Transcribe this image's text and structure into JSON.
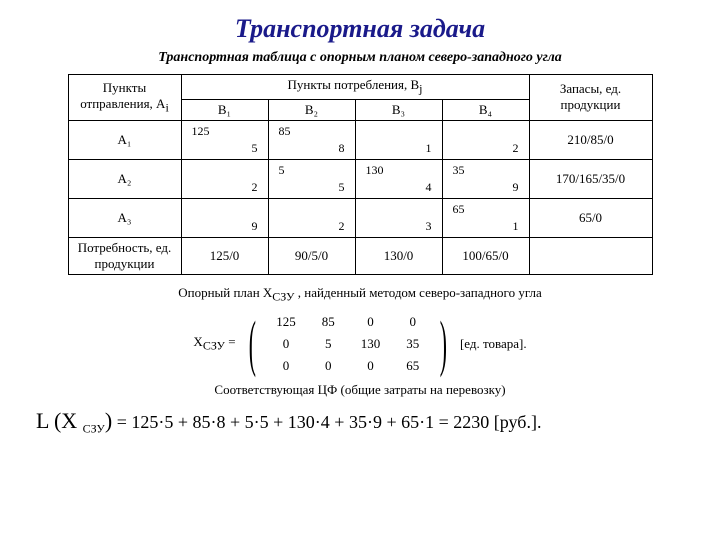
{
  "title": "Транспортная задача",
  "subtitle": "Транспортная таблица с опорным планом северо-западного угла",
  "colors": {
    "title": "#1a1a8a",
    "text": "#000000",
    "border": "#000000",
    "bg": "#ffffff"
  },
  "table": {
    "origin_header": "Пункты отправления, A",
    "origin_sub": "i",
    "cons_header": "Пункты потребления, B",
    "cons_sub": "j",
    "stock_header": "Запасы, ед. продукции",
    "cols": [
      "B₁",
      "B₂",
      "B₃",
      "B₄"
    ],
    "rows": [
      {
        "origin": "A₁",
        "cells": [
          {
            "alloc": "125",
            "cost": "5"
          },
          {
            "alloc": "85",
            "cost": "8"
          },
          {
            "alloc": "",
            "cost": "1"
          },
          {
            "alloc": "",
            "cost": "2"
          }
        ],
        "stock": "210/85/0"
      },
      {
        "origin": "A₂",
        "cells": [
          {
            "alloc": "",
            "cost": "2"
          },
          {
            "alloc": "5",
            "cost": "5"
          },
          {
            "alloc": "130",
            "cost": "4"
          },
          {
            "alloc": "35",
            "cost": "9"
          }
        ],
        "stock": "170/165/35/0"
      },
      {
        "origin": "A₃",
        "cells": [
          {
            "alloc": "",
            "cost": "9"
          },
          {
            "alloc": "",
            "cost": "2"
          },
          {
            "alloc": "",
            "cost": "3"
          },
          {
            "alloc": "65",
            "cost": "1"
          }
        ],
        "stock": "65/0"
      }
    ],
    "demand_label": "Потребность, ед. продукции",
    "demand": [
      "125/0",
      "90/5/0",
      "130/0",
      "100/65/0"
    ]
  },
  "caption2": "Опорный план X",
  "caption2_sub": "СЗУ",
  "caption2_rest": " , найденный методом северо-западного угла",
  "matrix": {
    "label": "X",
    "label_sub": "СЗУ",
    "eq": " = ",
    "rows": [
      [
        "125",
        "85",
        "0",
        "0"
      ],
      [
        "0",
        "5",
        "130",
        "35"
      ],
      [
        "0",
        "0",
        "0",
        "65"
      ]
    ],
    "unit": "[ед. товара]."
  },
  "caption3": "Соответствующая ЦФ (общие затраты на перевозку)",
  "formula": {
    "L": "L",
    "open": "(X ",
    "sub": "СЗУ",
    "close": ")",
    "eq1": "=",
    "expr": "125·5 + 85·8 + 5·5 + 130·4 + 35·9 + 65·1",
    "eq2": "=",
    "result": "2230",
    "unit": " [руб.]."
  }
}
